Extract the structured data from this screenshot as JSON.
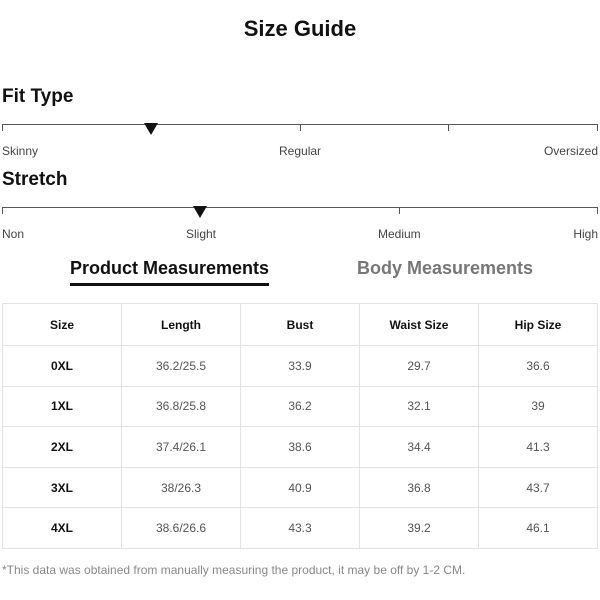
{
  "title": "Size Guide",
  "fit_type": {
    "label": "Fit Type",
    "options": [
      "Skinny",
      "Regular",
      "Oversized"
    ],
    "selected_position": 0.25
  },
  "stretch": {
    "label": "Stretch",
    "options": [
      "Non",
      "Slight",
      "Medium",
      "High"
    ],
    "selected_position": 0.333
  },
  "tabs": {
    "product": "Product Measurements",
    "body": "Body Measurements",
    "active": "product"
  },
  "table": {
    "headers": [
      "Size",
      "Length",
      "Bust",
      "Waist Size",
      "Hip Size"
    ],
    "rows": [
      [
        "0XL",
        "36.2/25.5",
        "33.9",
        "29.7",
        "36.6"
      ],
      [
        "1XL",
        "36.8/25.8",
        "36.2",
        "32.1",
        "39"
      ],
      [
        "2XL",
        "37.4/26.1",
        "38.6",
        "34.4",
        "41.3"
      ],
      [
        "3XL",
        "38/26.3",
        "40.9",
        "36.8",
        "43.7"
      ],
      [
        "4XL",
        "38.6/26.6",
        "43.3",
        "39.2",
        "46.1"
      ]
    ]
  },
  "note": "*This data was obtained from manually measuring the product, it may be off by 1-2 CM."
}
